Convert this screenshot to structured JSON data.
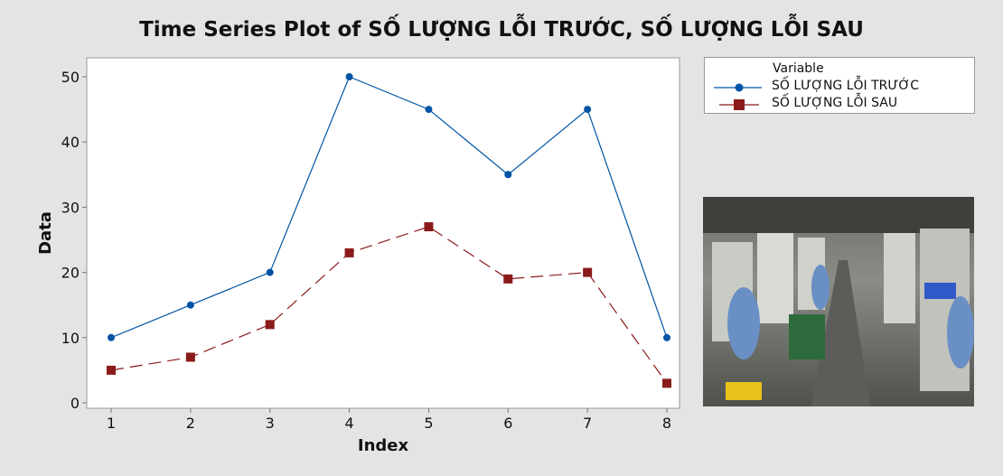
{
  "chart_data": {
    "type": "line",
    "title": "Time Series Plot of SỐ LƯỢNG LỖI TRƯỚC, SỐ LƯỢNG LỖI SAU",
    "xlabel": "Index",
    "ylabel": "Data",
    "x": [
      1,
      2,
      3,
      4,
      5,
      6,
      7,
      8
    ],
    "xticks": [
      "1",
      "2",
      "3",
      "4",
      "5",
      "6",
      "7",
      "8"
    ],
    "yticks": [
      0,
      10,
      20,
      30,
      40,
      50
    ],
    "ylim": [
      0,
      50
    ],
    "grid": false,
    "legend": {
      "title": "Variable",
      "placement": "right-top"
    },
    "series": [
      {
        "name": "SỐ LƯỢNG LỖI TRƯỚC",
        "values": [
          10,
          15,
          20,
          50,
          45,
          35,
          45,
          10
        ],
        "color": "#0054a6",
        "marker": "circle",
        "line": "solid"
      },
      {
        "name": "SỐ LƯỢNG LỖI SAU",
        "values": [
          5,
          7,
          12,
          23,
          27,
          19,
          20,
          3
        ],
        "color": "#8b1a1a",
        "marker": "square",
        "line": "dashed"
      }
    ]
  },
  "photo": {
    "description_icon": "factory-photo"
  }
}
